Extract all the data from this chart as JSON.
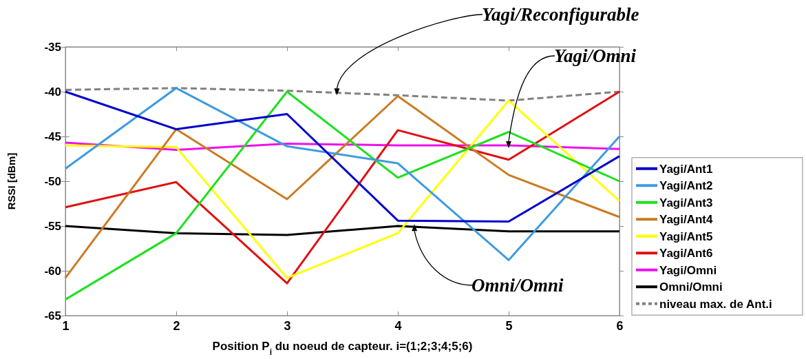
{
  "chart_data": {
    "type": "line",
    "xlabel": "Position P$_{i}$ du noeud de capteur. i=(1;2;3;4;5;6)",
    "ylabel": "RSSI [dBm]",
    "x": [
      1,
      2,
      3,
      4,
      5,
      6
    ],
    "xlim": [
      1,
      6
    ],
    "xticks": [
      1,
      2,
      3,
      4,
      5,
      6
    ],
    "ylim": [
      -65,
      -35
    ],
    "yticks": [
      -65,
      -60,
      -55,
      -50,
      -45,
      -40,
      -35
    ],
    "grid": false,
    "legend": "right",
    "marker": "none",
    "series": [
      {
        "name": "Yagi/Ant1",
        "color": "#0000cc",
        "values": [
          -40,
          -44.2,
          -42.5,
          -54.4,
          -54.5,
          -47.2
        ]
      },
      {
        "name": "Yagi/Ant2",
        "color": "#3d9be0",
        "values": [
          -48.6,
          -39.6,
          -46.1,
          -48,
          -58.8,
          -45
        ]
      },
      {
        "name": "Yagi/Ant3",
        "color": "#1ee01e",
        "values": [
          -63.2,
          -55.8,
          -40,
          -49.6,
          -44.5,
          -50
        ]
      },
      {
        "name": "Yagi/Ant4",
        "color": "#cc7a22",
        "values": [
          -60.8,
          -44.2,
          -52,
          -40.5,
          -49.3,
          -54
        ]
      },
      {
        "name": "Yagi/Ant5",
        "color": "#ffff00",
        "values": [
          -46,
          -46.2,
          -60.8,
          -55.8,
          -41,
          -52.2
        ]
      },
      {
        "name": "Yagi/Ant6",
        "color": "#e01010",
        "values": [
          -52.9,
          -50.1,
          -61.4,
          -44.3,
          -47.6,
          -40
        ]
      },
      {
        "name": "Yagi/Omni",
        "color": "#ee10ee",
        "values": [
          -45.7,
          -46.5,
          -45.8,
          -46,
          -46,
          -46.4
        ]
      },
      {
        "name": "Omni/Omni",
        "color": "#000000",
        "values": [
          -55,
          -55.8,
          -56,
          -55,
          -55.6,
          -55.6
        ]
      },
      {
        "name": "niveau max. de Ant.i",
        "color": "#808080",
        "line_style": "dashed",
        "values": [
          -39.8,
          -39.6,
          -39.9,
          -40.4,
          -41,
          -40
        ]
      }
    ],
    "annotations": [
      {
        "text": "Yagi/Reconfigurable",
        "x": 3.45,
        "y": -40.1
      },
      {
        "text": "Yagi/Omni",
        "x": 5,
        "y": -46
      },
      {
        "text": "Omni/Omni",
        "x": 4.15,
        "y": -55.1
      }
    ]
  }
}
